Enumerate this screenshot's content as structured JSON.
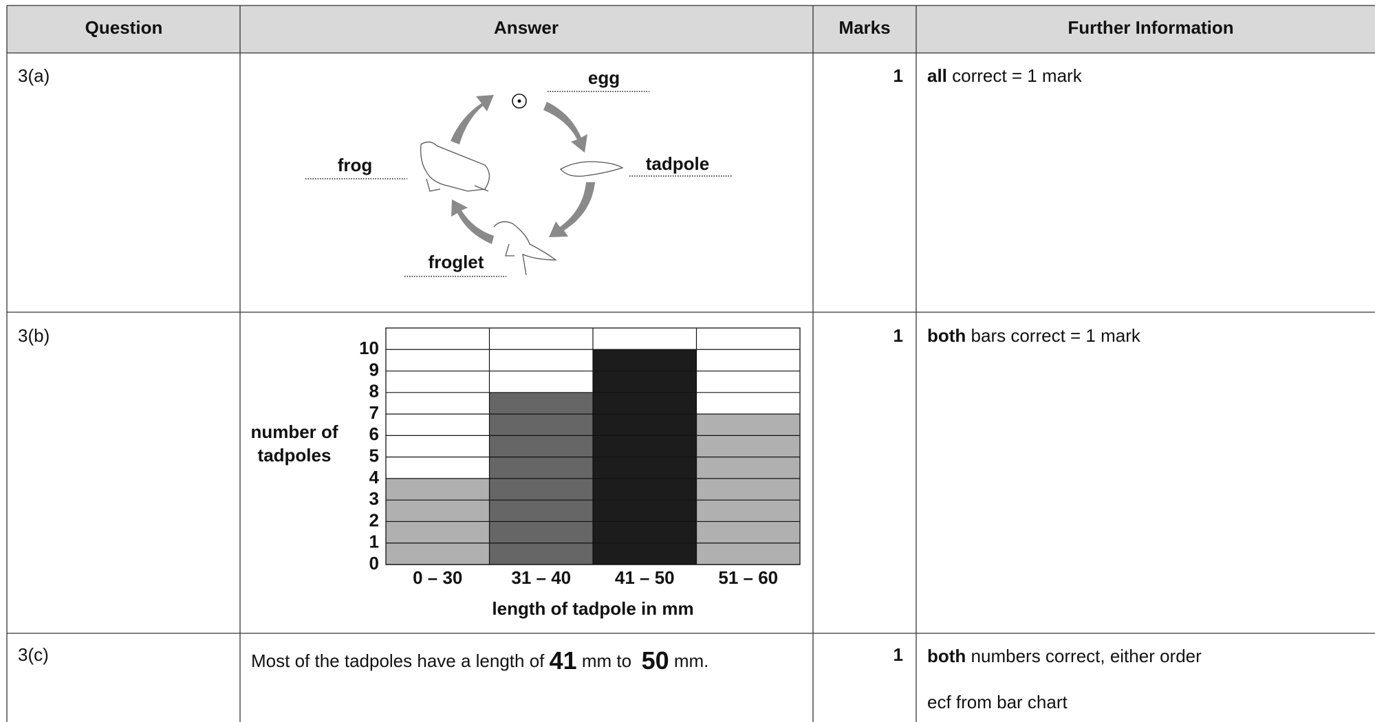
{
  "table": {
    "header": [
      "Question",
      "Answer",
      "Marks",
      "Further Information"
    ],
    "rows": [
      {
        "question": "3(a)",
        "answer": {
          "labels": {
            "egg": "egg",
            "tadpole": "tadpole",
            "froglet": "froglet",
            "frog": "frog"
          }
        },
        "marks": "1",
        "further": [
          {
            "bold": "all",
            "text": " correct = 1 mark"
          }
        ]
      },
      {
        "question": "3(b)",
        "answer": {
          "chart": {
            "type": "bar",
            "y_label_lines": [
              "number of",
              "tadpoles"
            ],
            "x_label": "length of tadpole in mm",
            "categories": [
              "0 – 30",
              "31 – 40",
              "41 – 50",
              "51 – 60"
            ],
            "values": [
              4,
              8,
              10,
              7
            ],
            "colors": [
              "#b0b0b0",
              "#666666",
              "#1c1c1c",
              "#b0b0b0"
            ],
            "ylim": [
              0,
              11
            ],
            "yticks": [
              0,
              1,
              2,
              3,
              4,
              5,
              6,
              7,
              8,
              9,
              10
            ],
            "grid": true
          }
        },
        "marks": "1",
        "further": [
          {
            "bold": "both",
            "text": " bars correct = 1 mark"
          }
        ]
      },
      {
        "question": "3(c)",
        "answer": {
          "parts": [
            "Most of the tadpoles have a length of ",
            "41",
            " mm to  ",
            "50",
            " mm."
          ]
        },
        "marks": "1",
        "further": [
          {
            "bold": "both",
            "text": " numbers correct, either order"
          },
          {
            "bold": "",
            "text": "ecf from bar chart"
          }
        ]
      }
    ]
  }
}
